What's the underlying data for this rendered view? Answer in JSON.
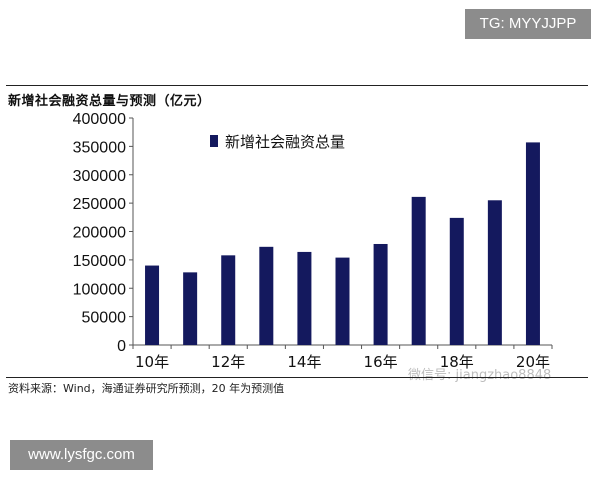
{
  "watermark_top": "TG: MYYJJPP",
  "watermark_bottom": "www.lysfgc.com",
  "source_note": "资料来源：Wind，海通证券研究所预测，20 年为预测值",
  "wechat_mark": "微信号: jiangzhao8848",
  "colors": {
    "bar": "#14195e",
    "axis": "#555555",
    "text": "#111111"
  },
  "chart_data": {
    "type": "bar",
    "title": "新增社会融资总量与预测（亿元）",
    "categories": [
      "10年",
      "11年",
      "12年",
      "13年",
      "14年",
      "15年",
      "16年",
      "17年",
      "18年",
      "19年",
      "20年"
    ],
    "category_labels_shown": [
      "10年",
      "",
      "12年",
      "",
      "14年",
      "",
      "16年",
      "",
      "18年",
      "",
      "20年"
    ],
    "series": [
      {
        "name": "新增社会融资总量",
        "values": [
          140000,
          128000,
          158000,
          173000,
          164000,
          154000,
          178000,
          261000,
          224000,
          255000,
          357000
        ]
      }
    ],
    "ylim": [
      0,
      400000
    ],
    "yticks": [
      0,
      50000,
      100000,
      150000,
      200000,
      250000,
      300000,
      350000,
      400000
    ],
    "xlabel": "",
    "ylabel": "",
    "legend_position": "top-left",
    "grid": false
  }
}
